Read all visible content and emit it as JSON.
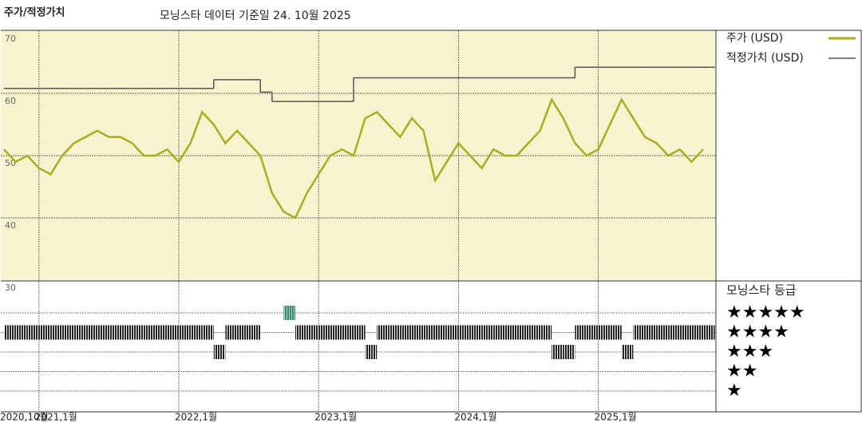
{
  "chart_data": [
    {
      "type": "line",
      "title": "주가/적정가치",
      "subtitle": "모닝스타 데이터 기준일 24. 10월 2025",
      "x": [
        "2020-10",
        "2020-11",
        "2020-12",
        "2021-01",
        "2021-02",
        "2021-03",
        "2021-04",
        "2021-05",
        "2021-06",
        "2021-07",
        "2021-08",
        "2021-09",
        "2021-10",
        "2021-11",
        "2021-12",
        "2022-01",
        "2022-02",
        "2022-03",
        "2022-04",
        "2022-05",
        "2022-06",
        "2022-07",
        "2022-08",
        "2022-09",
        "2022-10",
        "2022-11",
        "2022-12",
        "2023-01",
        "2023-02",
        "2023-03",
        "2023-04",
        "2023-05",
        "2023-06",
        "2023-07",
        "2023-08",
        "2023-09",
        "2023-10",
        "2023-11",
        "2023-12",
        "2024-01",
        "2024-02",
        "2024-03",
        "2024-04",
        "2024-05",
        "2024-06",
        "2024-07",
        "2024-08",
        "2024-09",
        "2024-10",
        "2024-11",
        "2024-12",
        "2025-01",
        "2025-02",
        "2025-03",
        "2025-04",
        "2025-05",
        "2025-06",
        "2025-07",
        "2025-08",
        "2025-09",
        "2025-10"
      ],
      "series": [
        {
          "name": "주가 (USD)",
          "color": "#a9ad1e",
          "style": "line",
          "values": [
            51,
            49,
            50,
            48,
            47,
            50,
            52,
            53,
            54,
            53,
            53,
            52,
            50,
            50,
            51,
            49,
            52,
            57,
            55,
            52,
            54,
            52,
            50,
            44,
            41,
            40,
            44,
            47,
            50,
            51,
            50,
            56,
            57,
            55,
            53,
            56,
            54,
            46,
            49,
            52,
            50,
            48,
            51,
            50,
            50,
            52,
            54,
            59,
            56,
            52,
            50,
            51,
            55,
            59,
            56,
            53,
            52,
            50,
            51,
            49,
            51
          ]
        },
        {
          "name": "적정가치 (USD)",
          "color": "#555555",
          "style": "step",
          "values": [
            60.8,
            60.8,
            60.8,
            60.8,
            60.8,
            60.8,
            60.8,
            60.8,
            60.8,
            60.8,
            60.8,
            60.8,
            60.8,
            60.8,
            60.8,
            60.8,
            60.8,
            60.8,
            62.2,
            62.2,
            62.2,
            62.2,
            60.2,
            58.7,
            58.7,
            58.7,
            58.7,
            58.7,
            58.7,
            58.7,
            62.5,
            62.5,
            62.5,
            62.5,
            62.5,
            62.5,
            62.5,
            62.5,
            62.5,
            62.5,
            62.5,
            62.5,
            62.5,
            62.5,
            62.5,
            62.5,
            62.5,
            62.5,
            62.5,
            64.2,
            64.2,
            64.2,
            64.2,
            64.2,
            64.2,
            64.2,
            64.2,
            64.2,
            64.2,
            64.2,
            64.2
          ]
        }
      ],
      "ylim": [
        30,
        70
      ],
      "yticks": [
        30,
        40,
        50,
        60,
        70
      ],
      "background": "#f7f3cf",
      "grid": true
    },
    {
      "type": "rating",
      "title": "모닝스타 등급",
      "color": "#222222",
      "highlight_color": "#3d8c6c",
      "values": [
        4,
        4,
        4,
        4,
        4,
        4,
        4,
        4,
        4,
        4,
        4,
        4,
        4,
        4,
        4,
        4,
        4,
        4,
        3,
        4,
        4,
        4,
        null,
        null,
        5,
        4,
        4,
        4,
        4,
        4,
        4,
        3,
        4,
        4,
        4,
        4,
        4,
        4,
        4,
        4,
        4,
        4,
        4,
        4,
        4,
        4,
        4,
        3,
        3,
        4,
        4,
        4,
        4,
        3,
        4,
        4,
        4,
        4,
        4,
        4,
        4
      ],
      "yticks": [
        {
          "value": 5,
          "label": "★★★★★"
        },
        {
          "value": 4,
          "label": "★★★★"
        },
        {
          "value": 3,
          "label": "★★★"
        },
        {
          "value": 2,
          "label": "★★"
        },
        {
          "value": 1,
          "label": "★"
        }
      ],
      "xticks": [
        {
          "value": "2020-10",
          "label": "2020,10월"
        },
        {
          "value": "2021-01",
          "label": "2021,1월"
        },
        {
          "value": "2022-01",
          "label": "2022,1월"
        },
        {
          "value": "2023-01",
          "label": "2023,1월"
        },
        {
          "value": "2024-01",
          "label": "2024,1월"
        },
        {
          "value": "2025-01",
          "label": "2025,1월"
        }
      ]
    }
  ]
}
